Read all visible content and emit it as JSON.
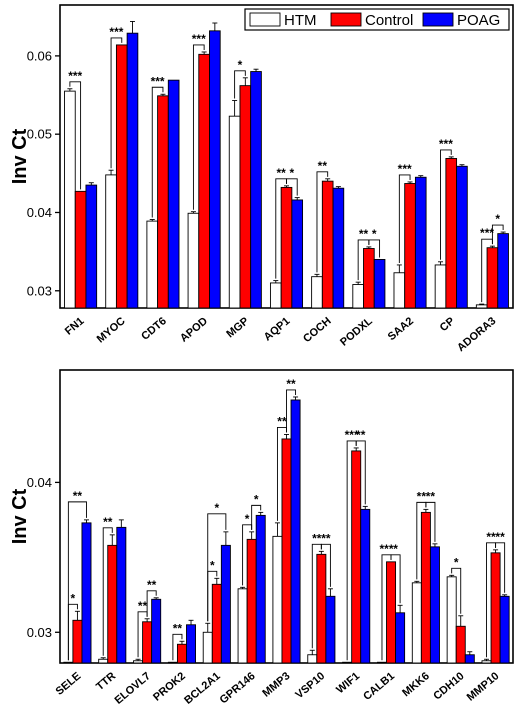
{
  "colors": {
    "HTM": "#ffffff",
    "Control": "#ff0000",
    "POAG": "#0000ff",
    "axis": "#000000"
  },
  "chart_data": [
    {
      "type": "bar",
      "ylabel": "Inv Ct",
      "ylim": [
        0.0278,
        0.0665
      ],
      "yticks": [
        "0.03",
        "0.04",
        "0.05",
        "0.06"
      ],
      "legend": {
        "placement": "top-right",
        "entries": [
          "HTM",
          "Control",
          "POAG"
        ]
      },
      "categories": [
        "FN1",
        "MYOC",
        "CDT6",
        "APOD",
        "MGP",
        "AQP1",
        "COCH",
        "PODXL",
        "SAA2",
        "CP",
        "ADORA3"
      ],
      "series": [
        {
          "name": "HTM",
          "values": [
            0.0555,
            0.0448,
            0.0389,
            0.0399,
            0.0523,
            0.031,
            0.0318,
            0.0308,
            0.0323,
            0.0333,
            0.0282
          ],
          "errors": [
            0.0003,
            0.0006,
            0.0002,
            0.0002,
            0.002,
            0.0003,
            0.0003,
            0.0003,
            0.001,
            0.0004,
            0.0001
          ]
        },
        {
          "name": "Control",
          "values": [
            0.0427,
            0.0614,
            0.0549,
            0.0602,
            0.0562,
            0.0432,
            0.044,
            0.0354,
            0.0437,
            0.0469,
            0.0355
          ],
          "errors": [
            0.0,
            0.0,
            0.0002,
            0.0003,
            0.001,
            0.0002,
            0.0003,
            0.0002,
            0.0002,
            0.0002,
            0.0002
          ]
        },
        {
          "name": "POAG",
          "values": [
            0.0435,
            0.0629,
            0.0569,
            0.0632,
            0.058,
            0.0416,
            0.0431,
            0.034,
            0.0445,
            0.0459,
            0.0373
          ],
          "errors": [
            0.0003,
            0.0015,
            0.0,
            0.001,
            0.0003,
            0.0003,
            0.0002,
            0.0,
            0.0002,
            0.0002,
            0.0002
          ]
        }
      ],
      "annotations": [
        {
          "category": "FN1",
          "from": 0,
          "to": 1,
          "label": "***"
        },
        {
          "category": "MYOC",
          "from": 0,
          "to": 1,
          "label": "***"
        },
        {
          "category": "CDT6",
          "from": 0,
          "to": 1,
          "label": "***"
        },
        {
          "category": "APOD",
          "from": 0,
          "to": 1,
          "label": "***"
        },
        {
          "category": "MGP",
          "from": 0,
          "to": 1,
          "label": "*"
        },
        {
          "category": "AQP1",
          "from": 0,
          "to": 1,
          "label": "**"
        },
        {
          "category": "AQP1",
          "from": 1,
          "to": 2,
          "label": "*"
        },
        {
          "category": "COCH",
          "from": 0,
          "to": 1,
          "label": "**"
        },
        {
          "category": "PODXL",
          "from": 0,
          "to": 1,
          "label": "**"
        },
        {
          "category": "PODXL",
          "from": 1,
          "to": 2,
          "label": "*"
        },
        {
          "category": "SAA2",
          "from": 0,
          "to": 1,
          "label": "***"
        },
        {
          "category": "CP",
          "from": 0,
          "to": 1,
          "label": "***"
        },
        {
          "category": "ADORA3",
          "from": 0,
          "to": 1,
          "label": "***"
        },
        {
          "category": "ADORA3",
          "from": 1,
          "to": 2,
          "label": "*"
        }
      ]
    },
    {
      "type": "bar",
      "ylabel": "Inv Ct",
      "ylim": [
        0.02795,
        0.0475
      ],
      "yticks": [
        "0.03",
        "0.04"
      ],
      "categories": [
        "SELE",
        "TTR",
        "ELOVL7",
        "PROK2",
        "BCL2A1",
        "GPR146",
        "MMP3",
        "VSP10",
        "WIF1",
        "CALB1",
        "MKK6",
        "CDH10",
        "MMP10"
      ],
      "series": [
        {
          "name": "HTM",
          "values": [
            0.028,
            0.0282,
            0.0281,
            0.028,
            0.03,
            0.0329,
            0.0364,
            0.0285,
            0.028,
            0.028,
            0.0333,
            0.0337,
            0.0281
          ],
          "errors": [
            0.0,
            0.0001,
            0.0001,
            0.0,
            0.0006,
            0.0001,
            0.0009,
            0.0003,
            0.0,
            0.0,
            0.0001,
            0.0001,
            0.0001
          ]
        },
        {
          "name": "Control",
          "values": [
            0.0308,
            0.0358,
            0.0307,
            0.0292,
            0.0332,
            0.0362,
            0.0429,
            0.0352,
            0.0421,
            0.0347,
            0.038,
            0.0304,
            0.0353
          ],
          "errors": [
            0.0006,
            0.0007,
            0.0002,
            0.0002,
            0.0004,
            0.0005,
            0.0003,
            0.0002,
            0.0002,
            0.0,
            0.0002,
            0.0007,
            0.0002
          ]
        },
        {
          "name": "POAG",
          "values": [
            0.0373,
            0.037,
            0.0322,
            0.0305,
            0.0358,
            0.0378,
            0.0455,
            0.0324,
            0.0382,
            0.0313,
            0.0357,
            0.0285,
            0.0324
          ],
          "errors": [
            0.0002,
            0.0005,
            0.0001,
            0.0003,
            0.0009,
            0.0002,
            0.0002,
            0.0005,
            0.0002,
            0.0005,
            0.0002,
            0.0002,
            0.0001
          ]
        }
      ],
      "annotations": [
        {
          "category": "SELE",
          "from": 0,
          "to": 1,
          "label": "*"
        },
        {
          "category": "SELE",
          "from": 0,
          "to": 2,
          "label": "**"
        },
        {
          "category": "TTR",
          "from": 0,
          "to": 1,
          "label": "**"
        },
        {
          "category": "ELOVL7",
          "from": 0,
          "to": 1,
          "label": "**"
        },
        {
          "category": "ELOVL7",
          "from": 1,
          "to": 2,
          "label": "**"
        },
        {
          "category": "PROK2",
          "from": 0,
          "to": 1,
          "label": "**"
        },
        {
          "category": "BCL2A1",
          "from": 0,
          "to": 1,
          "label": "*"
        },
        {
          "category": "BCL2A1",
          "from": 0,
          "to": 2,
          "label": "*"
        },
        {
          "category": "GPR146",
          "from": 0,
          "to": 1,
          "label": "*"
        },
        {
          "category": "GPR146",
          "from": 1,
          "to": 2,
          "label": "*"
        },
        {
          "category": "MMP3",
          "from": 0,
          "to": 1,
          "label": "**"
        },
        {
          "category": "MMP3",
          "from": 1,
          "to": 2,
          "label": "**"
        },
        {
          "category": "VSP10",
          "from": 0,
          "to": 1,
          "label": "**"
        },
        {
          "category": "VSP10",
          "from": 1,
          "to": 2,
          "label": "**"
        },
        {
          "category": "WIF1",
          "from": 0,
          "to": 1,
          "label": "***"
        },
        {
          "category": "WIF1",
          "from": 1,
          "to": 2,
          "label": "**"
        },
        {
          "category": "CALB1",
          "from": 0,
          "to": 1,
          "label": "***"
        },
        {
          "category": "CALB1",
          "from": 1,
          "to": 2,
          "label": "*"
        },
        {
          "category": "MKK6",
          "from": 0,
          "to": 1,
          "label": "**"
        },
        {
          "category": "MKK6",
          "from": 1,
          "to": 2,
          "label": "**"
        },
        {
          "category": "CDH10",
          "from": 0,
          "to": 1,
          "label": "*"
        },
        {
          "category": "MMP10",
          "from": 0,
          "to": 1,
          "label": "**"
        },
        {
          "category": "MMP10",
          "from": 1,
          "to": 2,
          "label": "**"
        }
      ]
    }
  ]
}
